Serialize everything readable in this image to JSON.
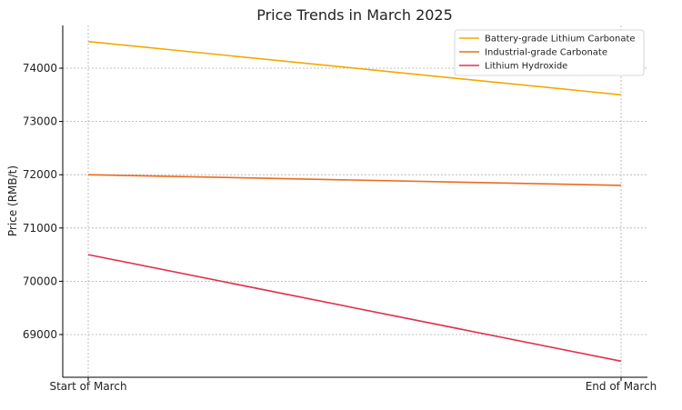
{
  "chart_data": {
    "type": "line",
    "title": "Price Trends in March 2025",
    "xlabel": "",
    "ylabel": "Price (RMB/t)",
    "categories": [
      "Start of March",
      "End of March"
    ],
    "series": [
      {
        "name": "Battery-grade Lithium Carbonate",
        "values": [
          74500,
          73500
        ],
        "color": "#f2a900"
      },
      {
        "name": "Industrial-grade Carbonate",
        "values": [
          72000,
          71800
        ],
        "color": "#ee6a1f"
      },
      {
        "name": "Lithium Hydroxide",
        "values": [
          70500,
          68500
        ],
        "color": "#e3304d"
      }
    ],
    "yticks": [
      69000,
      70000,
      71000,
      72000,
      73000,
      74000
    ],
    "ylim": [
      68200,
      74800
    ],
    "grid": true,
    "legend_position": "top-right"
  }
}
